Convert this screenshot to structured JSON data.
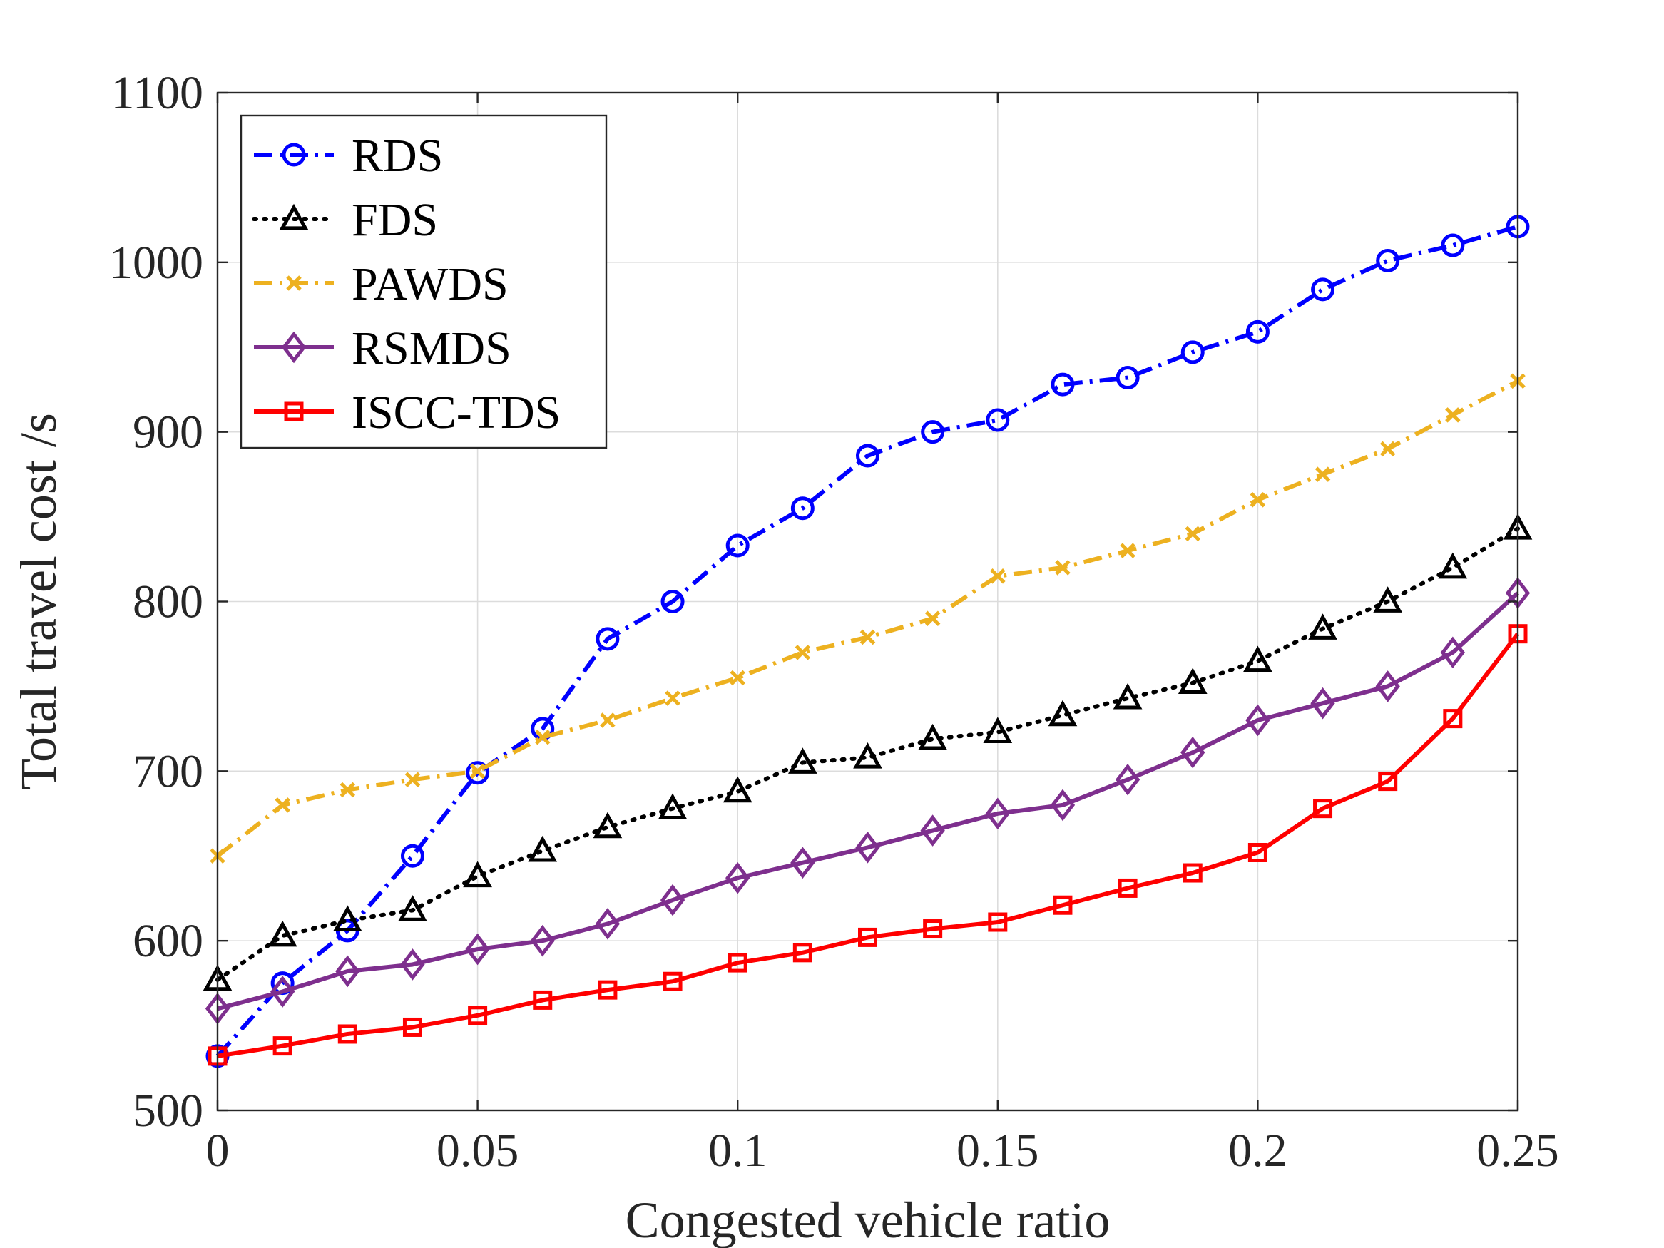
{
  "chart_data": {
    "type": "line",
    "xlabel": "Congested vehicle ratio",
    "ylabel": "Total travel cost /s",
    "xlim": [
      0,
      0.25
    ],
    "ylim": [
      500,
      1100
    ],
    "grid": true,
    "legend_position": "top-left",
    "x_ticks": [
      0,
      0.05,
      0.1,
      0.15,
      0.2,
      0.25
    ],
    "x_tick_labels": [
      "0",
      "0.05",
      "0.1",
      "0.15",
      "0.2",
      "0.25"
    ],
    "y_ticks": [
      500,
      600,
      700,
      800,
      900,
      1000,
      1100
    ],
    "y_tick_labels": [
      "500",
      "600",
      "700",
      "800",
      "900",
      "1000",
      "1100"
    ],
    "x": [
      0,
      0.0125,
      0.025,
      0.0375,
      0.05,
      0.0625,
      0.075,
      0.0875,
      0.1,
      0.1125,
      0.125,
      0.1375,
      0.15,
      0.1625,
      0.175,
      0.1875,
      0.2,
      0.2125,
      0.225,
      0.2375,
      0.25
    ],
    "series": [
      {
        "name": "RDS",
        "color": "#0000ff",
        "line_style": "dashdot",
        "marker": "circle",
        "values": [
          532,
          575,
          606,
          650,
          699,
          725,
          778,
          800,
          833,
          855,
          886,
          900,
          907,
          928,
          932,
          947,
          959,
          984,
          1001,
          1010,
          1021
        ]
      },
      {
        "name": "FDS",
        "color": "#000000",
        "line_style": "dotted",
        "marker": "triangle",
        "values": [
          577,
          603,
          612,
          618,
          638,
          653,
          667,
          678,
          688,
          705,
          708,
          719,
          723,
          733,
          743,
          752,
          765,
          784,
          800,
          820,
          843
        ]
      },
      {
        "name": "PAWDS",
        "color": "#edb120",
        "line_style": "dashdot",
        "marker": "x",
        "values": [
          650,
          680,
          689,
          695,
          700,
          720,
          730,
          743,
          755,
          770,
          779,
          790,
          815,
          820,
          830,
          840,
          860,
          875,
          890,
          910,
          930
        ]
      },
      {
        "name": "RSMDS",
        "color": "#7e2f8e",
        "line_style": "solid",
        "marker": "diamond",
        "values": [
          560,
          570,
          582,
          586,
          595,
          600,
          610,
          624,
          637,
          646,
          655,
          665,
          675,
          680,
          695,
          711,
          730,
          740,
          750,
          770,
          805
        ]
      },
      {
        "name": "ISCC-TDS",
        "color": "#ff0000",
        "line_style": "solid",
        "marker": "square",
        "values": [
          532,
          538,
          545,
          549,
          556,
          565,
          571,
          576,
          587,
          593,
          602,
          607,
          611,
          621,
          631,
          640,
          652,
          678,
          694,
          731,
          781
        ]
      }
    ]
  }
}
